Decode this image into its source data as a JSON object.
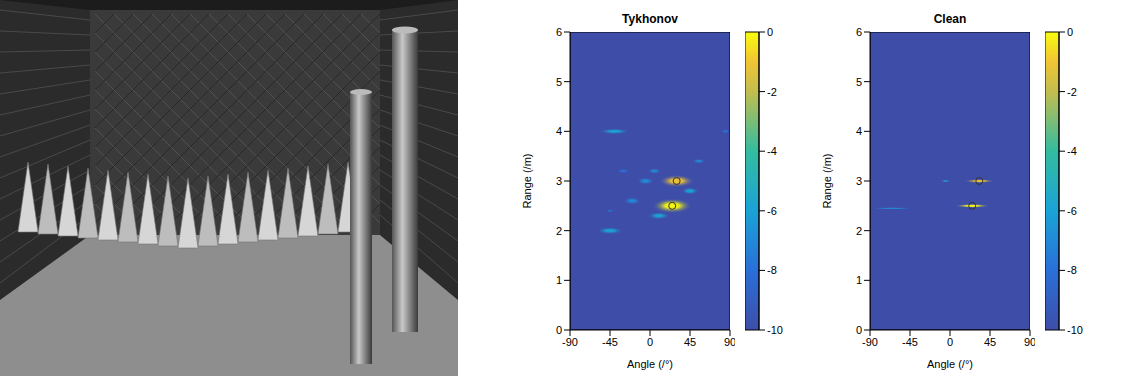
{
  "chart_data": [
    {
      "type": "heatmap",
      "title": "Tykhonov",
      "x_label": "Angle (/°)",
      "y_label": "Range (/m)",
      "xlim": [
        -90,
        90
      ],
      "xticks": [
        -90,
        -45,
        0,
        45,
        90
      ],
      "ylim": [
        0,
        6
      ],
      "yticks": [
        0,
        1,
        2,
        3,
        4,
        5,
        6
      ],
      "colorbar": {
        "range": [
          -10,
          0
        ],
        "ticks": [
          0,
          -2,
          -4,
          -6,
          -8,
          -10
        ]
      },
      "cells": [
        {
          "x": 30,
          "y": 3.0,
          "width": 40,
          "height": 0.25,
          "value": -1
        },
        {
          "x": 25,
          "y": 2.5,
          "width": 45,
          "height": 0.3,
          "value": 0
        },
        {
          "x": -40,
          "y": 4.0,
          "width": 35,
          "height": 0.12,
          "value": -6
        },
        {
          "x": -45,
          "y": 2.0,
          "width": 30,
          "height": 0.15,
          "value": -6
        },
        {
          "x": 10,
          "y": 2.3,
          "width": 25,
          "height": 0.15,
          "value": -6
        },
        {
          "x": -20,
          "y": 2.6,
          "width": 20,
          "height": 0.15,
          "value": -7
        },
        {
          "x": -30,
          "y": 3.2,
          "width": 15,
          "height": 0.1,
          "value": -8
        },
        {
          "x": 55,
          "y": 3.4,
          "width": 15,
          "height": 0.1,
          "value": -7
        },
        {
          "x": 45,
          "y": 2.8,
          "width": 20,
          "height": 0.15,
          "value": -6
        },
        {
          "x": 85,
          "y": 4.0,
          "width": 10,
          "height": 0.1,
          "value": -8
        },
        {
          "x": -5,
          "y": 3.0,
          "width": 20,
          "height": 0.15,
          "value": -7
        },
        {
          "x": 5,
          "y": 3.2,
          "width": 15,
          "height": 0.12,
          "value": -7
        },
        {
          "x": -45,
          "y": 2.4,
          "width": 10,
          "height": 0.06,
          "value": -8
        }
      ],
      "peaks": [
        {
          "x": 30,
          "y": 3.0
        },
        {
          "x": 25,
          "y": 2.5
        }
      ],
      "marker": "circle"
    },
    {
      "type": "heatmap",
      "title": "Clean",
      "x_label": "Angle (/°)",
      "y_label": "Range (/m)",
      "xlim": [
        -90,
        90
      ],
      "xticks": [
        -90,
        -45,
        0,
        45,
        90
      ],
      "ylim": [
        0,
        6
      ],
      "yticks": [
        0,
        1,
        2,
        3,
        4,
        5,
        6
      ],
      "colorbar": {
        "range": [
          -10,
          0
        ],
        "ticks": [
          0,
          -2,
          -4,
          -6,
          -8,
          -10
        ]
      },
      "cells": [
        {
          "x": 25,
          "y": 2.5,
          "width": 40,
          "height": 0.08,
          "value": 0
        },
        {
          "x": 33,
          "y": 3.0,
          "width": 35,
          "height": 0.08,
          "value": -1
        },
        {
          "x": -65,
          "y": 2.45,
          "width": 50,
          "height": 0.05,
          "value": -7
        },
        {
          "x": -5,
          "y": 3.0,
          "width": 12,
          "height": 0.05,
          "value": -6
        }
      ],
      "peaks": [
        {
          "x": 25,
          "y": 2.5
        },
        {
          "x": 33,
          "y": 3.0
        }
      ],
      "marker": "circle"
    }
  ]
}
